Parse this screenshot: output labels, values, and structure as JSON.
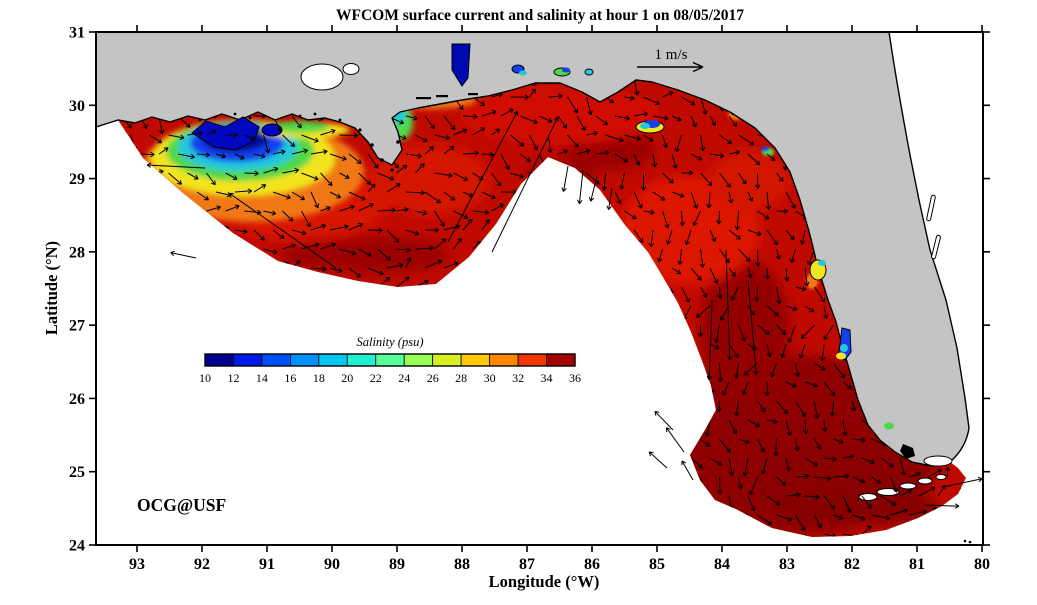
{
  "figure": {
    "title": "WFCOM surface current and salinity at hour 1 on 08/05/2017"
  },
  "axes": {
    "xlabel": "Longitude (°W)",
    "ylabel": "Latitude (°N)",
    "x_ticks": [
      "93",
      "92",
      "91",
      "90",
      "89",
      "88",
      "87",
      "86",
      "85",
      "84",
      "83",
      "82",
      "81",
      "80"
    ],
    "y_ticks": [
      "31",
      "30",
      "29",
      "28",
      "27",
      "26",
      "25",
      "24"
    ]
  },
  "colorbar": {
    "title": "Salinity (psu)",
    "tick_labels": [
      "10",
      "12",
      "14",
      "16",
      "18",
      "20",
      "22",
      "24",
      "26",
      "28",
      "30",
      "32",
      "34",
      "36"
    ],
    "colors": [
      "#000090",
      "#0018E8",
      "#0050FF",
      "#0090FF",
      "#00C8F0",
      "#20F0D0",
      "#58FF98",
      "#98FF58",
      "#D8F020",
      "#FFC800",
      "#FF8800",
      "#F03800",
      "#A80000"
    ]
  },
  "annotations": {
    "watermark": "OCG@USF",
    "scale_label": "1 m/s"
  },
  "colors": {
    "land": "#C4C4C4",
    "coastline": "#000000",
    "domain_base_red": "#C00A00",
    "maroon": "#8F0000",
    "bright_red": "#DD1600",
    "plume_blue": "#1540EC",
    "arrow": "#000000",
    "watermark_red": "#FF0000",
    "background": "#FFFFFF"
  },
  "chart_data": {
    "type": "heatmap",
    "subtype": "geographic salinity field with surface current vector arrows (model output map)",
    "title": "WFCOM surface current and salinity at hour 1 on 08/05/2017",
    "xlabel": "Longitude (°W)",
    "ylabel": "Latitude (°N)",
    "x_ticks_deg_w": [
      93,
      92,
      91,
      90,
      89,
      88,
      87,
      86,
      85,
      84,
      83,
      82,
      81,
      80
    ],
    "y_ticks_deg_n": [
      31,
      30,
      29,
      28,
      27,
      26,
      25,
      24
    ],
    "xlim_deg_w": [
      93.6,
      80
    ],
    "ylim_deg_n": [
      24,
      31
    ],
    "grid": false,
    "colorbar": {
      "label": "Salinity (psu)",
      "min": 10,
      "max": 36,
      "tick_step": 2,
      "ticks": [
        10,
        12,
        14,
        16,
        18,
        20,
        22,
        24,
        26,
        28,
        30,
        32,
        34,
        36
      ],
      "colormap": "jet"
    },
    "vector_key": {
      "label": "1 m/s"
    },
    "land_regions": "Northern Gulf coast (Louisiana, Mississippi, Alabama, Florida panhandle) and Florida peninsula shown in gray; areas outside the WFCOM model domain (deep Gulf and Atlantic) shown in white",
    "field_values": [
      {
        "region": "Louisiana shelf plume near 92.5-90.5°W, 28.8-29.6°N",
        "salinity_psu": "10-24 (fresh plume: dark blue core ~10-14 grading through cyan/green to yellow ~24-28)"
      },
      {
        "region": "Mississippi Sound / Mobile Bay outflow ~89-88°W",
        "salinity_psu": "18-30 (yellow/orange fringe, blue inside bays)"
      },
      {
        "region": "Open shelf, DeSoto Canyon rim and West Florida Shelf",
        "salinity_psu": "34-36 (red to dark red over most of the domain)"
      },
      {
        "region": "Coastal bays: Apalachicola, Tampa Bay, Charlotte Harbor, Ten Thousand Islands",
        "salinity_psu": "14-30 (small localized blue/cyan/yellow patches)"
      },
      {
        "region": "South Florida / Florida Keys arc",
        "salinity_psu": "~36 (darkest red)"
      }
    ],
    "currents_summary": "Black vector arrows (~1 m/s reference): generally eastward along the Louisiana-Mississippi shelf and panhandle, turning south-southeastward along the West Florida Shelf, with cyclonic curving around south Florida and eastward flow through/around the Florida Keys"
  }
}
